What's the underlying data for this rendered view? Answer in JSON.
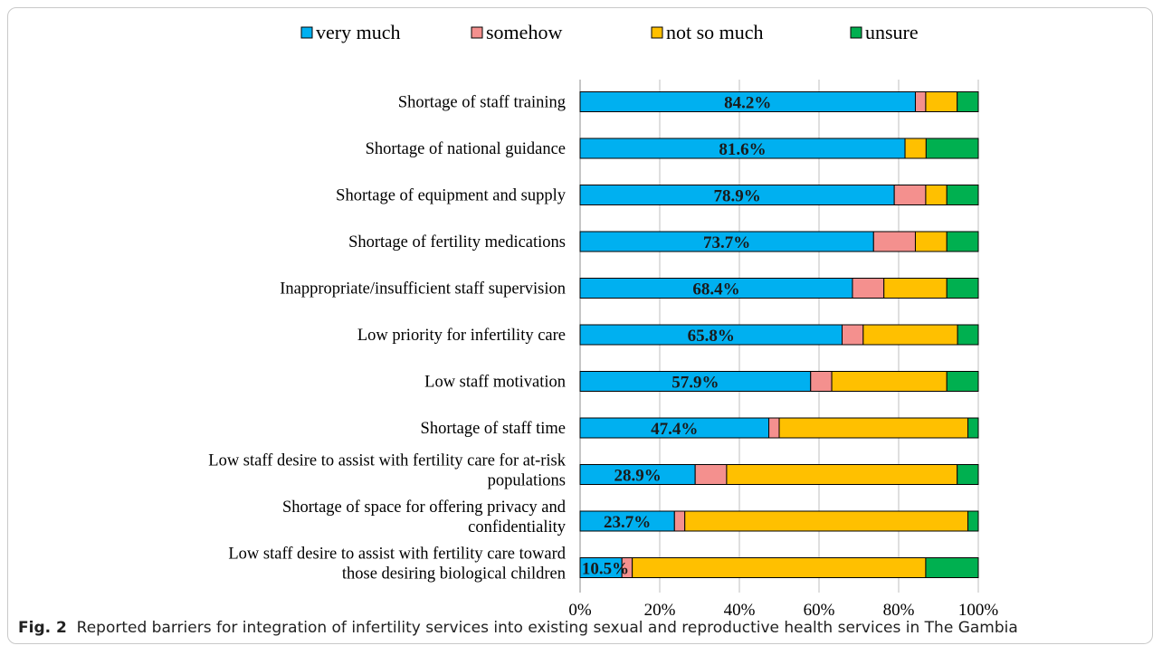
{
  "caption": {
    "label": "Fig. 2",
    "text": "Reported barriers for integration of infertility services into existing sexual and reproductive health services in The Gambia"
  },
  "chart_data": {
    "type": "bar",
    "orientation": "horizontal",
    "stacked": true,
    "xlim": [
      0,
      100
    ],
    "x_ticks": [
      "0%",
      "20%",
      "40%",
      "60%",
      "80%",
      "100%"
    ],
    "grid": true,
    "legend_position": "top",
    "categories": [
      [
        "Shortage of staff training"
      ],
      [
        "Shortage of national guidance"
      ],
      [
        "Shortage of equipment and supply"
      ],
      [
        "Shortage of fertility medications"
      ],
      [
        "Inappropriate/insufficient staff supervision"
      ],
      [
        "Low priority for infertility care"
      ],
      [
        "Low staff motivation"
      ],
      [
        "Shortage of staff time"
      ],
      [
        "Low staff desire to assist with fertility care for at-risk",
        "populations"
      ],
      [
        "Shortage of space for offering privacy and",
        "confidentiality"
      ],
      [
        "Low staff desire to assist with fertility care toward",
        "those desiring biological children"
      ]
    ],
    "series": [
      {
        "name": "very much",
        "color": "#00b0f0",
        "values": [
          84.2,
          81.6,
          78.9,
          73.7,
          68.4,
          65.8,
          57.9,
          47.4,
          28.9,
          23.7,
          10.5
        ]
      },
      {
        "name": "somehow",
        "color": "#f4908e",
        "values": [
          2.6,
          0,
          7.9,
          10.5,
          7.9,
          5.3,
          5.3,
          2.6,
          7.9,
          2.6,
          2.6
        ]
      },
      {
        "name": "not so much",
        "color": "#ffc000",
        "values": [
          7.9,
          5.3,
          5.3,
          7.9,
          15.8,
          23.7,
          28.9,
          47.4,
          57.9,
          71.1,
          73.7
        ]
      },
      {
        "name": "unsure",
        "color": "#00b050",
        "values": [
          5.3,
          13.1,
          7.9,
          7.9,
          7.9,
          5.2,
          7.9,
          2.6,
          5.3,
          2.6,
          13.2
        ]
      }
    ],
    "data_labels": [
      "84.2%",
      "81.6%",
      "78.9%",
      "73.7%",
      "68.4%",
      "65.8%",
      "57.9%",
      "47.4%",
      "28.9%",
      "23.7%",
      "10.5%"
    ]
  }
}
